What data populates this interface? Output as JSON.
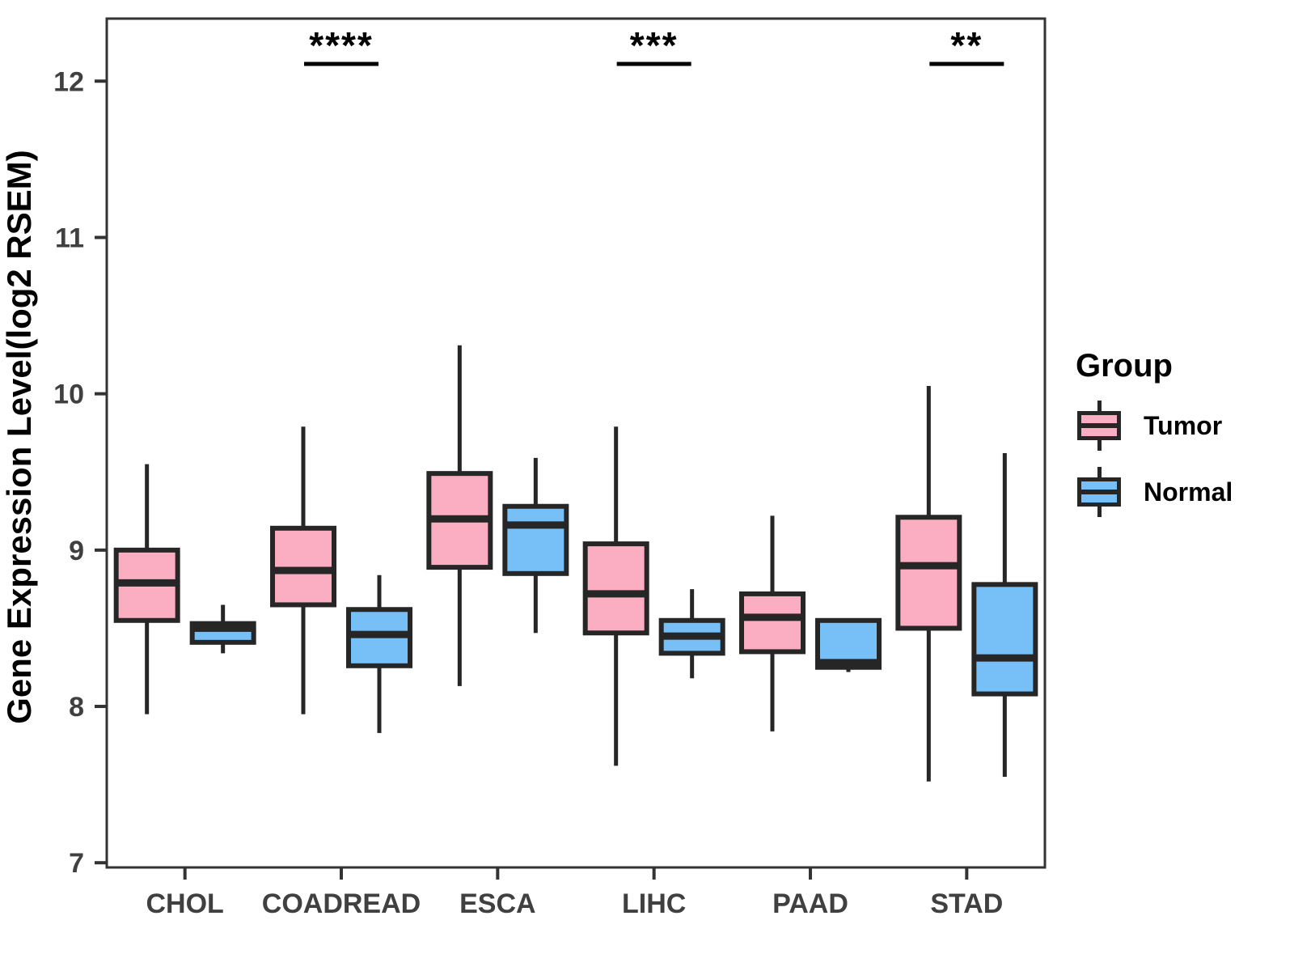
{
  "chart_data": {
    "type": "boxplot",
    "title": "",
    "xlabel": "",
    "ylabel": "Gene Expression Level(log2 RSEM)",
    "categories": [
      "CHOL",
      "COADREAD",
      "ESCA",
      "LIHC",
      "PAAD",
      "STAD"
    ],
    "yticks": [
      7,
      8,
      9,
      10,
      11,
      12
    ],
    "ylim": [
      6.97,
      12.4
    ],
    "grid": false,
    "legend_position": "right",
    "legend_title": "Group",
    "colors": {
      "tumor_fill": "#FBAEC1",
      "normal_fill": "#77BFF7",
      "box_stroke": "#262626",
      "axis_stroke": "#333333",
      "tick_text": "#404040"
    },
    "series": [
      {
        "name": "Tumor",
        "color": "#FBAEC1",
        "boxes": [
          {
            "lo": 7.95,
            "q1": 8.55,
            "med": 8.79,
            "q3": 9.0,
            "hi": 9.55
          },
          {
            "lo": 7.95,
            "q1": 8.65,
            "med": 8.87,
            "q3": 9.14,
            "hi": 9.79
          },
          {
            "lo": 8.13,
            "q1": 8.89,
            "med": 9.2,
            "q3": 9.49,
            "hi": 10.31
          },
          {
            "lo": 7.62,
            "q1": 8.47,
            "med": 8.72,
            "q3": 9.04,
            "hi": 9.79
          },
          {
            "lo": 7.84,
            "q1": 8.35,
            "med": 8.57,
            "q3": 8.72,
            "hi": 9.22
          },
          {
            "lo": 7.52,
            "q1": 8.5,
            "med": 8.9,
            "q3": 9.21,
            "hi": 10.05
          }
        ]
      },
      {
        "name": "Normal",
        "color": "#77BFF7",
        "boxes": [
          {
            "lo": 8.34,
            "q1": 8.41,
            "med": 8.5,
            "q3": 8.53,
            "hi": 8.65
          },
          {
            "lo": 7.83,
            "q1": 8.26,
            "med": 8.46,
            "q3": 8.62,
            "hi": 8.84
          },
          {
            "lo": 8.47,
            "q1": 8.85,
            "med": 9.16,
            "q3": 9.28,
            "hi": 9.59
          },
          {
            "lo": 8.18,
            "q1": 8.34,
            "med": 8.45,
            "q3": 8.55,
            "hi": 8.75
          },
          {
            "lo": 8.22,
            "q1": 8.25,
            "med": 8.28,
            "q3": 8.55,
            "hi": 8.56
          },
          {
            "lo": 7.55,
            "q1": 8.08,
            "med": 8.31,
            "q3": 8.78,
            "hi": 9.62
          }
        ]
      }
    ],
    "significance": [
      {
        "category": "COADREAD",
        "label": "****"
      },
      {
        "category": "LIHC",
        "label": "***"
      },
      {
        "category": "STAD",
        "label": "**"
      }
    ]
  }
}
